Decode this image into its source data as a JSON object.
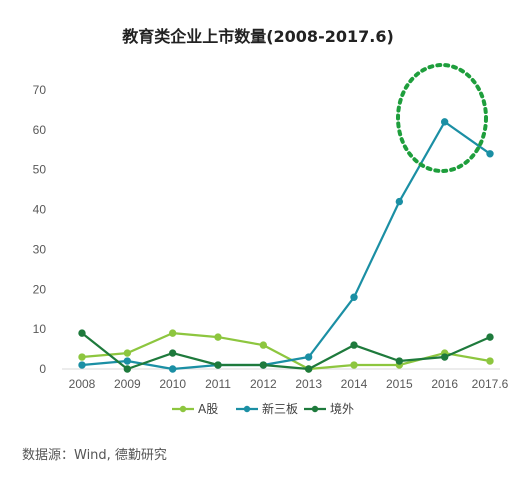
{
  "chart_data": {
    "type": "line",
    "title": "教育类企业上市数量(2008-2017.6)",
    "categories": [
      "2008",
      "2009",
      "2010",
      "2011",
      "2012",
      "2013",
      "2014",
      "2015",
      "2016",
      "2017.6"
    ],
    "ylim": [
      0,
      70
    ],
    "yticks": [
      0,
      10,
      20,
      30,
      40,
      50,
      60,
      70
    ],
    "grid": false,
    "legend_position": "bottom",
    "series": [
      {
        "name": "A股",
        "color": "#8DC63F",
        "values": [
          3,
          4,
          9,
          8,
          6,
          0,
          1,
          1,
          4,
          2
        ]
      },
      {
        "name": "新三板",
        "color": "#1B8FA4",
        "values": [
          1,
          2,
          0,
          1,
          1,
          3,
          18,
          42,
          62,
          54
        ]
      },
      {
        "name": "境外",
        "color": "#1E7A3C",
        "values": [
          9,
          0,
          4,
          1,
          1,
          0,
          6,
          2,
          3,
          8
        ]
      }
    ],
    "annotation": {
      "type": "dashed-ellipse",
      "color": "#1E9E3C",
      "around": [
        "2016",
        "2017.6"
      ]
    }
  },
  "source": "数据源：Wind, 德勤研究"
}
